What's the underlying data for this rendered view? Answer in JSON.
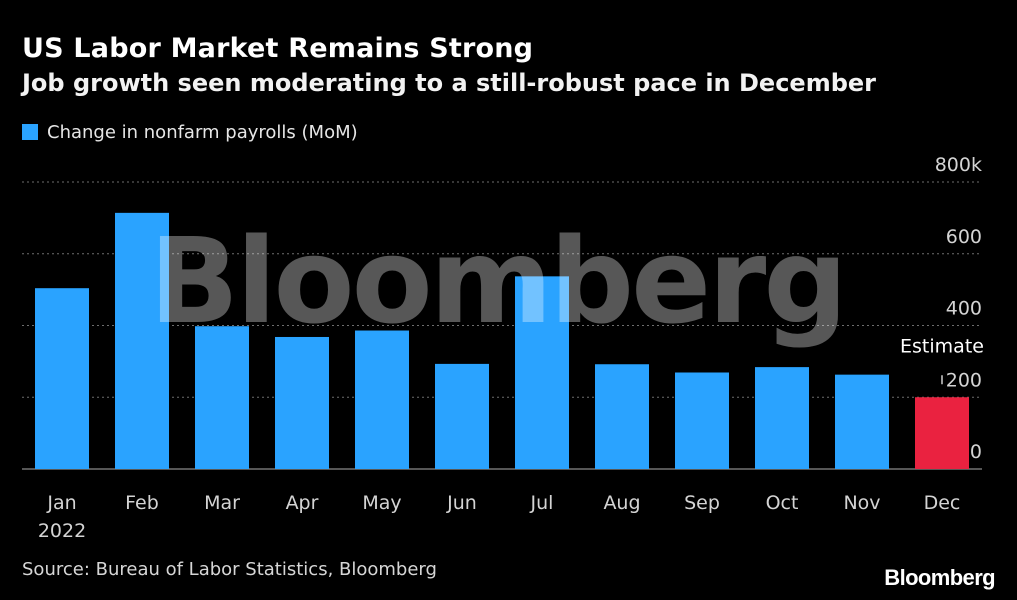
{
  "header": {
    "title": "US Labor Market Remains Strong",
    "subtitle": "Job growth seen moderating to a still-robust pace in December"
  },
  "legend": {
    "label": "Change in nonfarm payrolls (MoM)",
    "color": "#2aa3ff"
  },
  "annotation": {
    "label": "Estimate"
  },
  "watermark": {
    "text": "Bloomberg"
  },
  "footer": {
    "source": "Source: Bureau of Labor Statistics, Bloomberg",
    "brand": "Bloomberg"
  },
  "colors": {
    "bar": "#2aa3ff",
    "estimate": "#ea2240",
    "grid": "#6e6e6e",
    "axis_text": "#d4d4d4"
  },
  "chart_data": {
    "type": "bar",
    "title": "US Labor Market Remains Strong",
    "subtitle": "Job growth seen moderating to a still-robust pace in December",
    "series": [
      {
        "name": "Change in nonfarm payrolls (MoM)",
        "values": [
          504,
          714,
          398,
          368,
          386,
          293,
          537,
          292,
          269,
          284,
          263,
          200
        ]
      }
    ],
    "categories": [
      "Jan",
      "Feb",
      "Mar",
      "Apr",
      "May",
      "Jun",
      "Jul",
      "Aug",
      "Sep",
      "Oct",
      "Nov",
      "Dec"
    ],
    "category_sublabels": [
      "2022",
      "",
      "",
      "",
      "",
      "",
      "",
      "",
      "",
      "",
      "",
      ""
    ],
    "estimate_index": 11,
    "ylim": [
      0,
      800
    ],
    "yticks": [
      0,
      200,
      400,
      600,
      800
    ],
    "ytick_labels": [
      "0",
      "200",
      "400",
      "600",
      "800k"
    ],
    "grid": true,
    "y_axis_side": "right",
    "legend_position": "top-left",
    "xlabel": "",
    "ylabel": ""
  }
}
